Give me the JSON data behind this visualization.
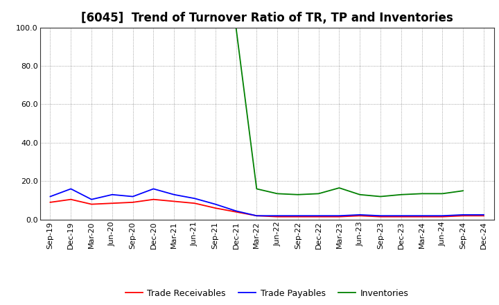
{
  "title": "[6045]  Trend of Turnover Ratio of TR, TP and Inventories",
  "ylim": [
    0.0,
    100.0
  ],
  "yticks": [
    0.0,
    20.0,
    40.0,
    60.0,
    80.0,
    100.0
  ],
  "x_labels": [
    "Sep-19",
    "Dec-19",
    "Mar-20",
    "Jun-20",
    "Sep-20",
    "Dec-20",
    "Mar-21",
    "Jun-21",
    "Sep-21",
    "Dec-21",
    "Mar-22",
    "Jun-22",
    "Sep-22",
    "Dec-22",
    "Mar-23",
    "Jun-23",
    "Sep-23",
    "Dec-23",
    "Mar-24",
    "Jun-24",
    "Sep-24",
    "Dec-24"
  ],
  "trade_receivables": [
    9.0,
    10.5,
    8.0,
    8.5,
    9.0,
    10.5,
    9.5,
    8.5,
    6.0,
    4.0,
    2.0,
    1.5,
    1.5,
    1.5,
    1.5,
    2.0,
    1.5,
    1.5,
    1.5,
    1.5,
    2.0,
    2.0
  ],
  "trade_payables": [
    12.0,
    16.0,
    10.5,
    13.0,
    12.0,
    16.0,
    13.0,
    11.0,
    8.0,
    4.5,
    2.0,
    2.0,
    2.0,
    2.0,
    2.0,
    2.5,
    2.0,
    2.0,
    2.0,
    2.0,
    2.5,
    2.5
  ],
  "inventories": [
    null,
    null,
    null,
    null,
    null,
    null,
    null,
    null,
    null,
    100.0,
    16.0,
    13.5,
    13.0,
    13.5,
    16.5,
    13.0,
    12.0,
    13.0,
    13.5,
    13.5,
    15.0,
    null
  ],
  "color_tr": "#ff0000",
  "color_tp": "#0000ff",
  "color_inv": "#008000",
  "legend_labels": [
    "Trade Receivables",
    "Trade Payables",
    "Inventories"
  ],
  "background_color": "#ffffff",
  "grid_color": "#888888",
  "title_fontsize": 12,
  "tick_fontsize": 8,
  "legend_fontsize": 9
}
